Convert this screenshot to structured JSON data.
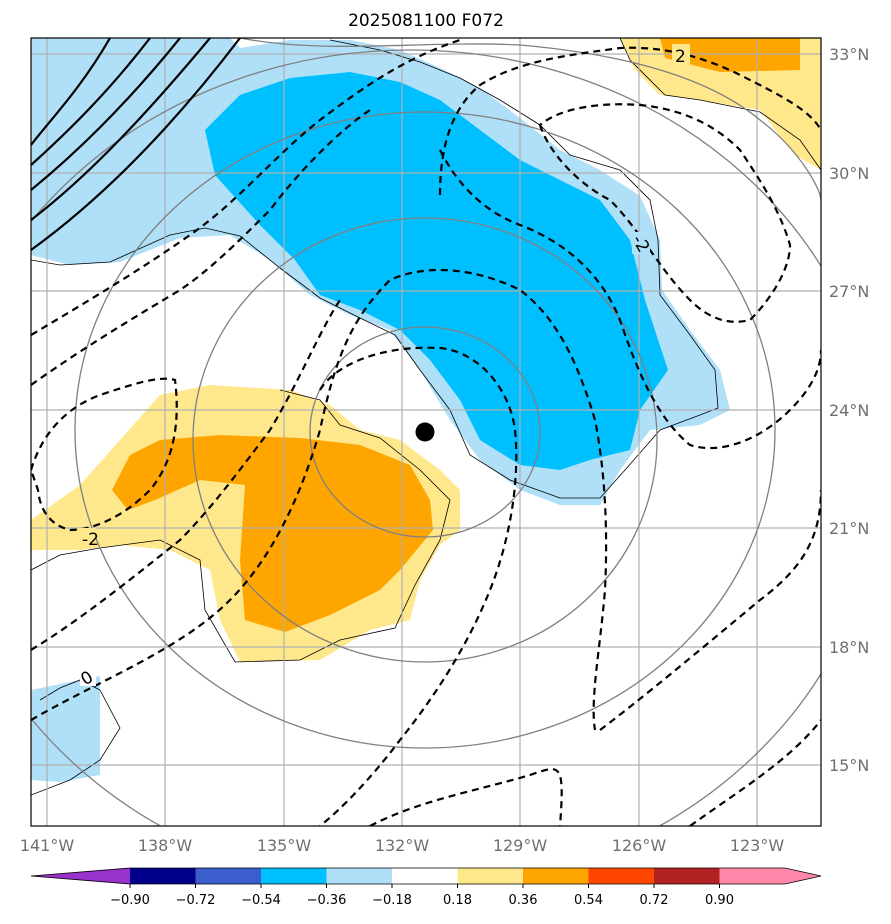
{
  "title": "2025081100 F072",
  "lat_labels": [
    "33°N",
    "30°N",
    "27°N",
    "24°N",
    "21°N",
    "18°N",
    "15°N"
  ],
  "lon_labels": [
    "141°W",
    "138°W",
    "135°W",
    "132°W",
    "129°W",
    "126°W",
    "123°W"
  ],
  "contour_labels": [
    "2",
    "-2",
    "-2",
    "0"
  ],
  "colorbar": {
    "ticks": [
      "−0.90",
      "−0.72",
      "−0.54",
      "−0.36",
      "−0.18",
      "0.18",
      "0.36",
      "0.54",
      "0.72",
      "0.90"
    ],
    "colors": [
      "#9932cc",
      "#00008b",
      "#3a5fcd",
      "#00bfff",
      "#b0e0f8",
      "#ffffff",
      "#ffe88c",
      "#ffa500",
      "#ff4500",
      "#b22222",
      "#ff88aa"
    ]
  },
  "colors": {
    "light_blue": "#b0e0f8",
    "deep_sky_blue": "#00bfff",
    "light_yellow": "#ffe88c",
    "orange": "#ffa500",
    "grid": "#b0b0b0",
    "gray_contour": "#808080"
  },
  "center_marker": "storm-center-dot"
}
